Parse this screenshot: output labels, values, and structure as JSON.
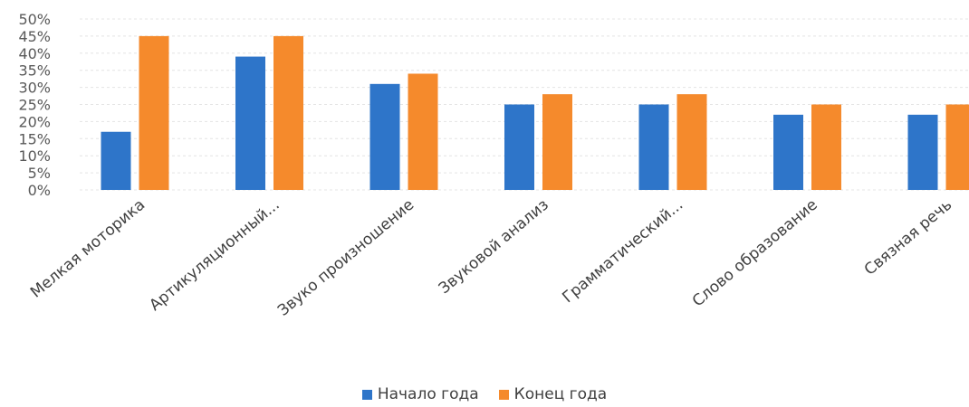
{
  "chart_data": {
    "type": "bar",
    "categories": [
      "Мелкая  моторика",
      "Артикуляционный...",
      "Звуко произношение",
      "Звуковой анализ",
      "Грамматический...",
      "Слово образование",
      "Связная речь"
    ],
    "series": [
      {
        "name": "Начало года",
        "values": [
          17,
          39,
          31,
          25,
          25,
          22,
          22
        ],
        "color": "#2E75C9"
      },
      {
        "name": "Конец года",
        "values": [
          45,
          45,
          34,
          28,
          28,
          25,
          25
        ],
        "color": "#F58A2C"
      }
    ],
    "yticks": [
      "0%",
      "5%",
      "10%",
      "15%",
      "20%",
      "25%",
      "30%",
      "35%",
      "40%",
      "45%",
      "50%"
    ],
    "ylim": [
      0,
      50
    ],
    "grid": true,
    "legend_position": "bottom"
  }
}
